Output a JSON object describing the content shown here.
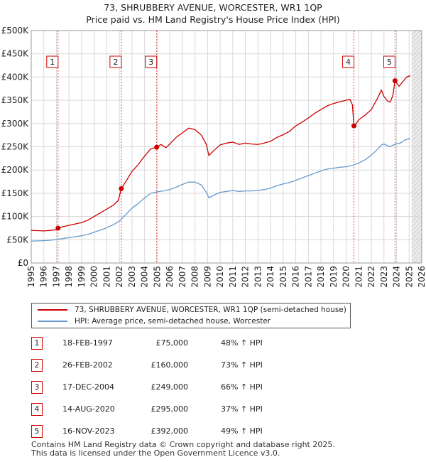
{
  "title": {
    "line1": "73, SHRUBBERY AVENUE, WORCESTER, WR1 1QP",
    "line2": "Price paid vs. HM Land Registry's House Price Index (HPI)"
  },
  "colors": {
    "property": "#cc0000",
    "hpi": "#6699cc",
    "marker_border": "#cc0000",
    "future_band": "#dddddd",
    "grid": "#d8d8d8"
  },
  "chart_data": {
    "type": "line",
    "x_range": [
      1995,
      2026
    ],
    "ylim": [
      0,
      500000
    ],
    "y_ticks": [
      {
        "value": 0,
        "label": "£0"
      },
      {
        "value": 50000,
        "label": "£50K"
      },
      {
        "value": 100000,
        "label": "£100K"
      },
      {
        "value": 150000,
        "label": "£150K"
      },
      {
        "value": 200000,
        "label": "£200K"
      },
      {
        "value": 250000,
        "label": "£250K"
      },
      {
        "value": 300000,
        "label": "£300K"
      },
      {
        "value": 350000,
        "label": "£350K"
      },
      {
        "value": 400000,
        "label": "£400K"
      },
      {
        "value": 450000,
        "label": "£450K"
      },
      {
        "value": 500000,
        "label": "£500K"
      }
    ],
    "x_ticks": [
      1995,
      1996,
      1997,
      1998,
      1999,
      2000,
      2001,
      2002,
      2003,
      2004,
      2005,
      2006,
      2007,
      2008,
      2009,
      2010,
      2011,
      2012,
      2013,
      2014,
      2015,
      2016,
      2017,
      2018,
      2019,
      2020,
      2021,
      2022,
      2023,
      2024,
      2025,
      2026
    ],
    "data_end": 2025.2,
    "series": [
      {
        "name": "73, SHRUBBERY AVENUE, WORCESTER, WR1 1QP (semi-detached house)",
        "points": [
          [
            1995.0,
            70000
          ],
          [
            1995.5,
            69500
          ],
          [
            1996.0,
            69000
          ],
          [
            1996.5,
            70000
          ],
          [
            1997.0,
            71500
          ],
          [
            1997.13,
            75000
          ],
          [
            1997.5,
            78000
          ],
          [
            1998.0,
            81000
          ],
          [
            1998.5,
            84000
          ],
          [
            1999.0,
            87000
          ],
          [
            1999.5,
            92000
          ],
          [
            2000.0,
            100000
          ],
          [
            2000.5,
            108000
          ],
          [
            2001.0,
            116000
          ],
          [
            2001.5,
            124000
          ],
          [
            2001.9,
            134000
          ],
          [
            2002.15,
            160000
          ],
          [
            2002.5,
            175000
          ],
          [
            2003.0,
            197000
          ],
          [
            2003.5,
            212000
          ],
          [
            2004.0,
            230000
          ],
          [
            2004.5,
            246000
          ],
          [
            2004.96,
            249000
          ],
          [
            2005.3,
            255000
          ],
          [
            2005.7,
            248000
          ],
          [
            2006.0,
            256000
          ],
          [
            2006.5,
            270000
          ],
          [
            2007.0,
            280000
          ],
          [
            2007.5,
            290000
          ],
          [
            2008.0,
            287000
          ],
          [
            2008.5,
            275000
          ],
          [
            2008.9,
            255000
          ],
          [
            2009.1,
            231000
          ],
          [
            2009.5,
            242000
          ],
          [
            2010.0,
            254000
          ],
          [
            2010.5,
            258000
          ],
          [
            2011.0,
            260000
          ],
          [
            2011.5,
            255000
          ],
          [
            2012.0,
            258000
          ],
          [
            2012.5,
            256000
          ],
          [
            2013.0,
            255000
          ],
          [
            2013.5,
            258000
          ],
          [
            2014.0,
            262000
          ],
          [
            2014.5,
            270000
          ],
          [
            2015.0,
            276000
          ],
          [
            2015.5,
            283000
          ],
          [
            2016.0,
            295000
          ],
          [
            2016.5,
            303000
          ],
          [
            2017.0,
            312000
          ],
          [
            2017.5,
            322000
          ],
          [
            2018.0,
            330000
          ],
          [
            2018.5,
            338000
          ],
          [
            2019.0,
            343000
          ],
          [
            2019.5,
            347000
          ],
          [
            2020.0,
            350000
          ],
          [
            2020.3,
            352000
          ],
          [
            2020.5,
            340000
          ],
          [
            2020.62,
            295000
          ],
          [
            2020.8,
            300000
          ],
          [
            2021.0,
            308000
          ],
          [
            2021.5,
            318000
          ],
          [
            2022.0,
            330000
          ],
          [
            2022.5,
            355000
          ],
          [
            2022.8,
            372000
          ],
          [
            2023.0,
            358000
          ],
          [
            2023.3,
            348000
          ],
          [
            2023.5,
            346000
          ],
          [
            2023.7,
            360000
          ],
          [
            2023.88,
            392000
          ],
          [
            2024.2,
            380000
          ],
          [
            2024.5,
            390000
          ],
          [
            2024.8,
            400000
          ],
          [
            2025.1,
            403000
          ]
        ]
      },
      {
        "name": "HPI: Average price, semi-detached house, Worcester",
        "points": [
          [
            1995.0,
            47000
          ],
          [
            1995.5,
            47500
          ],
          [
            1996.0,
            48000
          ],
          [
            1996.5,
            49000
          ],
          [
            1997.0,
            50500
          ],
          [
            1997.5,
            52500
          ],
          [
            1998.0,
            54500
          ],
          [
            1998.5,
            56500
          ],
          [
            1999.0,
            58500
          ],
          [
            1999.5,
            61500
          ],
          [
            2000.0,
            66000
          ],
          [
            2000.5,
            71000
          ],
          [
            2001.0,
            76000
          ],
          [
            2001.5,
            82000
          ],
          [
            2002.0,
            90000
          ],
          [
            2002.5,
            104000
          ],
          [
            2003.0,
            118000
          ],
          [
            2003.5,
            128000
          ],
          [
            2004.0,
            140000
          ],
          [
            2004.5,
            150000
          ],
          [
            2005.0,
            153000
          ],
          [
            2005.5,
            155000
          ],
          [
            2006.0,
            158000
          ],
          [
            2006.5,
            163000
          ],
          [
            2007.0,
            169000
          ],
          [
            2007.5,
            174000
          ],
          [
            2008.0,
            174000
          ],
          [
            2008.5,
            168000
          ],
          [
            2008.9,
            152000
          ],
          [
            2009.1,
            140000
          ],
          [
            2009.5,
            146000
          ],
          [
            2010.0,
            152000
          ],
          [
            2010.5,
            154000
          ],
          [
            2011.0,
            156000
          ],
          [
            2011.5,
            154000
          ],
          [
            2012.0,
            155000
          ],
          [
            2012.5,
            155000
          ],
          [
            2013.0,
            156000
          ],
          [
            2013.5,
            158000
          ],
          [
            2014.0,
            161000
          ],
          [
            2014.5,
            166000
          ],
          [
            2015.0,
            170000
          ],
          [
            2015.5,
            173000
          ],
          [
            2016.0,
            178000
          ],
          [
            2016.5,
            183000
          ],
          [
            2017.0,
            188000
          ],
          [
            2017.5,
            193000
          ],
          [
            2018.0,
            198000
          ],
          [
            2018.5,
            202000
          ],
          [
            2019.0,
            204000
          ],
          [
            2019.5,
            206000
          ],
          [
            2020.0,
            207000
          ],
          [
            2020.5,
            210000
          ],
          [
            2021.0,
            215000
          ],
          [
            2021.5,
            222000
          ],
          [
            2022.0,
            232000
          ],
          [
            2022.5,
            245000
          ],
          [
            2022.8,
            254000
          ],
          [
            2023.0,
            256000
          ],
          [
            2023.5,
            250000
          ],
          [
            2023.9,
            256000
          ],
          [
            2024.3,
            258000
          ],
          [
            2024.7,
            265000
          ],
          [
            2025.1,
            268000
          ]
        ]
      }
    ],
    "sales": [
      {
        "num": "1",
        "x": 1997.13,
        "price": 75000
      },
      {
        "num": "2",
        "x": 2002.15,
        "price": 160000
      },
      {
        "num": "3",
        "x": 2004.96,
        "price": 249000
      },
      {
        "num": "4",
        "x": 2020.62,
        "price": 295000
      },
      {
        "num": "5",
        "x": 2023.88,
        "price": 392000
      }
    ]
  },
  "legend": {
    "property_label": "73, SHRUBBERY AVENUE, WORCESTER, WR1 1QP (semi-detached house)",
    "hpi_label": "HPI: Average price, semi-detached house, Worcester"
  },
  "sales_table": [
    {
      "num": "1",
      "date": "18-FEB-1997",
      "price": "£75,000",
      "hpi": "48% ↑ HPI"
    },
    {
      "num": "2",
      "date": "26-FEB-2002",
      "price": "£160,000",
      "hpi": "73% ↑ HPI"
    },
    {
      "num": "3",
      "date": "17-DEC-2004",
      "price": "£249,000",
      "hpi": "66% ↑ HPI"
    },
    {
      "num": "4",
      "date": "14-AUG-2020",
      "price": "£295,000",
      "hpi": "37% ↑ HPI"
    },
    {
      "num": "5",
      "date": "16-NOV-2023",
      "price": "£392,000",
      "hpi": "49% ↑ HPI"
    }
  ],
  "footer": {
    "line1": "Contains HM Land Registry data © Crown copyright and database right 2025.",
    "line2": "This data is licensed under the Open Government Licence v3.0."
  }
}
